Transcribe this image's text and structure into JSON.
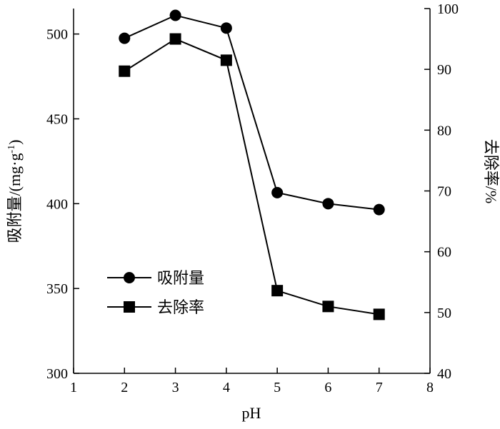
{
  "chart_data": {
    "type": "line",
    "x": [
      2,
      3,
      4,
      5,
      6,
      7
    ],
    "xlabel": "pH",
    "xlim": [
      1,
      8
    ],
    "xticks": [
      "1",
      "2",
      "3",
      "4",
      "5",
      "6",
      "7",
      "8"
    ],
    "ylabel": "吸附量/(mg·g",
    "ylabel_sup": "-1",
    "ylabel_close": ")",
    "ylim": [
      300,
      515
    ],
    "yticks": [
      "300",
      "350",
      "400",
      "450",
      "500"
    ],
    "y2label": "去除率/%",
    "y2lim": [
      40,
      100
    ],
    "y2ticks": [
      "40",
      "50",
      "60",
      "70",
      "80",
      "90",
      "100"
    ],
    "series": [
      {
        "name": "吸附量",
        "axis": "left",
        "marker": "circle",
        "values": [
          497.5,
          511,
          503.5,
          406.5,
          400,
          396.5
        ]
      },
      {
        "name": "去除率",
        "axis": "right",
        "marker": "square",
        "values": [
          89.7,
          95,
          91.5,
          53.6,
          51,
          49.7
        ]
      }
    ],
    "legend_position": "lower-left",
    "grid": false
  }
}
